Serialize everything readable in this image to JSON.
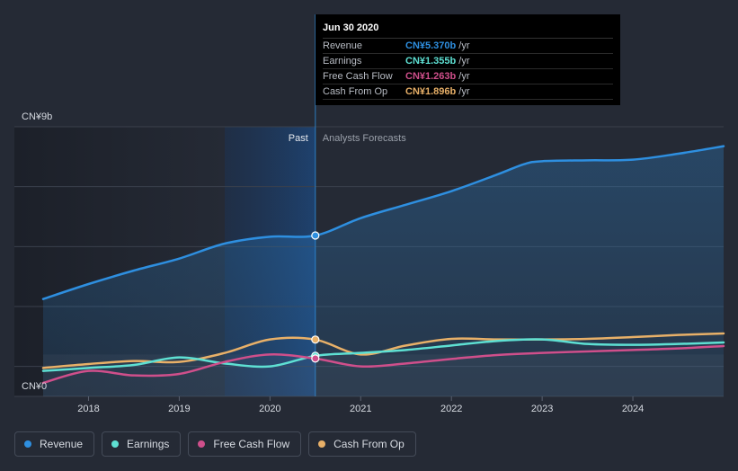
{
  "chart_data": {
    "type": "area",
    "y_top_label": "CN¥9b",
    "y_bottom_label": "CN¥0",
    "ylim": [
      0,
      9
    ],
    "xlim": [
      2017.5,
      2025.0
    ],
    "x_ticks": [
      "2018",
      "2019",
      "2020",
      "2021",
      "2022",
      "2023",
      "2024"
    ],
    "past_label": "Past",
    "forecast_label": "Analysts Forecasts",
    "divider_x": 2020.5,
    "series": [
      {
        "name": "Revenue",
        "color": "#2e8fe0",
        "area": true,
        "points": [
          [
            2017.5,
            3.25
          ],
          [
            2018.0,
            3.75
          ],
          [
            2018.5,
            4.2
          ],
          [
            2019.0,
            4.6
          ],
          [
            2019.5,
            5.1
          ],
          [
            2020.0,
            5.33
          ],
          [
            2020.5,
            5.37
          ],
          [
            2021.0,
            5.95
          ],
          [
            2021.5,
            6.4
          ],
          [
            2022.0,
            6.85
          ],
          [
            2022.5,
            7.4
          ],
          [
            2022.8,
            7.75
          ],
          [
            2023.0,
            7.85
          ],
          [
            2023.5,
            7.88
          ],
          [
            2024.0,
            7.9
          ],
          [
            2024.5,
            8.1
          ],
          [
            2025.0,
            8.35
          ]
        ]
      },
      {
        "name": "Earnings",
        "color": "#5ee0d3",
        "area": false,
        "points": [
          [
            2017.5,
            0.85
          ],
          [
            2018.0,
            0.95
          ],
          [
            2018.5,
            1.05
          ],
          [
            2019.0,
            1.3
          ],
          [
            2019.5,
            1.1
          ],
          [
            2020.0,
            1.0
          ],
          [
            2020.5,
            1.355
          ],
          [
            2021.0,
            1.45
          ],
          [
            2021.5,
            1.55
          ],
          [
            2022.0,
            1.7
          ],
          [
            2022.5,
            1.85
          ],
          [
            2023.0,
            1.9
          ],
          [
            2023.5,
            1.75
          ],
          [
            2024.0,
            1.72
          ],
          [
            2024.5,
            1.75
          ],
          [
            2025.0,
            1.8
          ]
        ]
      },
      {
        "name": "Free Cash Flow",
        "color": "#cf4f8b",
        "area": false,
        "points": [
          [
            2017.5,
            0.45
          ],
          [
            2018.0,
            0.85
          ],
          [
            2018.5,
            0.7
          ],
          [
            2019.0,
            0.75
          ],
          [
            2019.5,
            1.15
          ],
          [
            2020.0,
            1.4
          ],
          [
            2020.5,
            1.263
          ],
          [
            2021.0,
            1.0
          ],
          [
            2021.5,
            1.1
          ],
          [
            2022.0,
            1.25
          ],
          [
            2022.5,
            1.38
          ],
          [
            2023.0,
            1.45
          ],
          [
            2023.5,
            1.5
          ],
          [
            2024.0,
            1.55
          ],
          [
            2024.5,
            1.6
          ],
          [
            2025.0,
            1.68
          ]
        ]
      },
      {
        "name": "Cash From Op",
        "color": "#e8b068",
        "area": false,
        "points": [
          [
            2017.5,
            0.95
          ],
          [
            2018.0,
            1.08
          ],
          [
            2018.5,
            1.18
          ],
          [
            2019.0,
            1.15
          ],
          [
            2019.5,
            1.45
          ],
          [
            2020.0,
            1.9
          ],
          [
            2020.5,
            1.896
          ],
          [
            2021.0,
            1.4
          ],
          [
            2021.5,
            1.7
          ],
          [
            2022.0,
            1.92
          ],
          [
            2022.5,
            1.9
          ],
          [
            2023.0,
            1.9
          ],
          [
            2023.5,
            1.92
          ],
          [
            2024.0,
            1.98
          ],
          [
            2024.5,
            2.05
          ],
          [
            2025.0,
            2.1
          ]
        ]
      }
    ],
    "highlight_x": 2020.5
  },
  "tooltip": {
    "title": "Jun 30 2020",
    "rows": [
      {
        "label": "Revenue",
        "value": "CN¥5.370b",
        "unit": "/yr",
        "color": "#2e8fe0"
      },
      {
        "label": "Earnings",
        "value": "CN¥1.355b",
        "unit": "/yr",
        "color": "#5ee0d3"
      },
      {
        "label": "Free Cash Flow",
        "value": "CN¥1.263b",
        "unit": "/yr",
        "color": "#cf4f8b"
      },
      {
        "label": "Cash From Op",
        "value": "CN¥1.896b",
        "unit": "/yr",
        "color": "#e8b068"
      }
    ]
  },
  "legend": [
    {
      "label": "Revenue",
      "color": "#2e8fe0"
    },
    {
      "label": "Earnings",
      "color": "#5ee0d3"
    },
    {
      "label": "Free Cash Flow",
      "color": "#cf4f8b"
    },
    {
      "label": "Cash From Op",
      "color": "#e8b068"
    }
  ]
}
